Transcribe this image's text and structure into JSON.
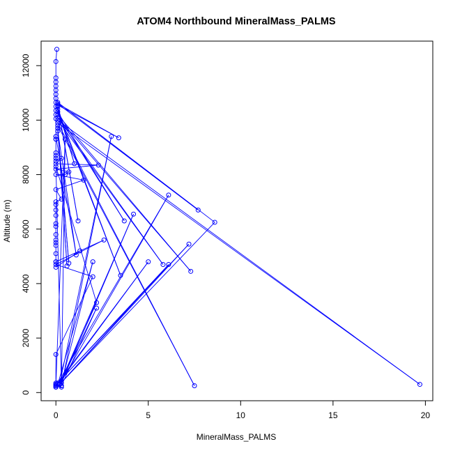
{
  "chart_data": {
    "type": "line",
    "title": "ATOM4 Northbound MineralMass_PALMS",
    "xlabel": "MineralMass_PALMS",
    "ylabel": "Altitude (m)",
    "xlim": [
      -0.8,
      20.4
    ],
    "ylim": [
      -300,
      12900
    ],
    "xticks": [
      0,
      5,
      10,
      15,
      20
    ],
    "yticks": [
      0,
      2000,
      4000,
      6000,
      8000,
      10000,
      12000
    ],
    "series_color": "#0000ff",
    "markers": "open-circle",
    "grid": false,
    "legend": "none",
    "series": [
      {
        "x": [
          0.05,
          0.0,
          0.0,
          0.0,
          0.0,
          0.0,
          0.0,
          0.0,
          0.0,
          0.0,
          0.0,
          0.0,
          0.0,
          0.0,
          0.0,
          0.0,
          0.0,
          0.0,
          0.0,
          0.3,
          0.0,
          2.3,
          0.0,
          0.7,
          0.5,
          0.0,
          1.5,
          0.0,
          0.3,
          0.0,
          0.0,
          0.0,
          0.0,
          0.0,
          0.0,
          0.0,
          0.0,
          0.0,
          0.0,
          0.0,
          0.0,
          0.0,
          1.3,
          0.0,
          2.6,
          0.0,
          2.0,
          0.0,
          0.0,
          0.0,
          0.0,
          0.0,
          0.0,
          0.0,
          0.0,
          0.0,
          0.0,
          0.0,
          0.0,
          0.3,
          0.0,
          0.5,
          0.3,
          0.0,
          2.2,
          0.2,
          3.0,
          0.3,
          2.2,
          0.2,
          4.2,
          0.3,
          2.0,
          0.1,
          5.0,
          0.1,
          6.1,
          0.2,
          6.1,
          0.1,
          7.2,
          0.2,
          8.6,
          0.1,
          7.7,
          0.1,
          3.4,
          0.1,
          1.2,
          0.1,
          1.0,
          0.1,
          3.5,
          0.1,
          3.7,
          0.1,
          7.3,
          0.1,
          5.8,
          0.1,
          19.7,
          0.1,
          7.5,
          0.1,
          0.6,
          0.1,
          0.7,
          0.1,
          1.1,
          0.0,
          0.0
        ],
        "y": [
          12600,
          12150,
          11550,
          11400,
          11250,
          11100,
          10950,
          10800,
          10650,
          10500,
          10350,
          10200,
          10050,
          9400,
          9300,
          8800,
          8700,
          8600,
          8500,
          8600,
          8400,
          8350,
          8200,
          8100,
          8000,
          8000,
          7800,
          7450,
          7100,
          7000,
          6900,
          6700,
          6500,
          6200,
          6100,
          5800,
          5600,
          5500,
          5400,
          5100,
          4800,
          4600,
          5200,
          4800,
          5600,
          4700,
          4250,
          1400,
          300,
          250,
          200,
          250,
          300,
          350,
          200,
          250,
          300,
          200,
          250,
          200,
          300,
          9300,
          250,
          8300,
          3300,
          300,
          9400,
          250,
          3100,
          300,
          6550,
          350,
          4800,
          300,
          4800,
          350,
          7250,
          300,
          4700,
          350,
          5450,
          300,
          6250,
          10650,
          6700,
          10600,
          9350,
          10550,
          6300,
          10500,
          8400,
          10400,
          4300,
          10300,
          6300,
          10200,
          4450,
          10100,
          4700,
          10000,
          300,
          9900,
          250,
          9800,
          4650,
          9700,
          4750,
          9600,
          5050,
          9400,
          9300
        ]
      }
    ]
  }
}
